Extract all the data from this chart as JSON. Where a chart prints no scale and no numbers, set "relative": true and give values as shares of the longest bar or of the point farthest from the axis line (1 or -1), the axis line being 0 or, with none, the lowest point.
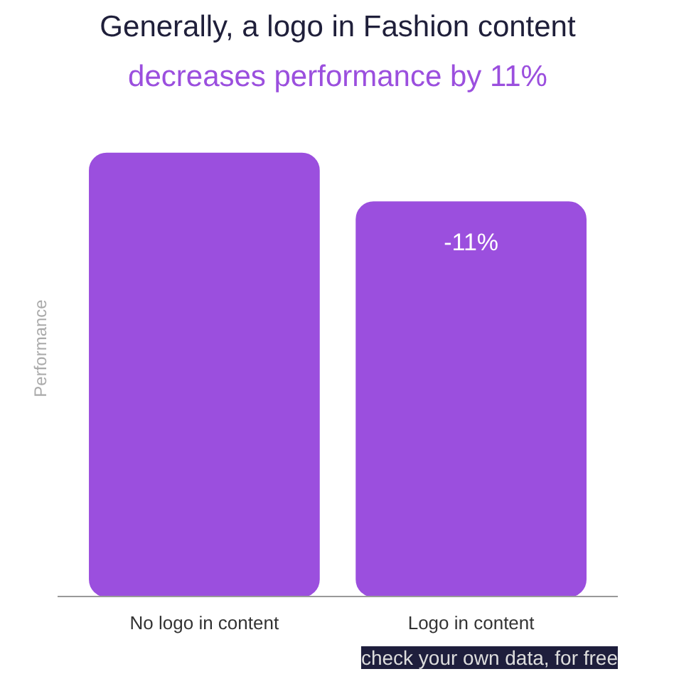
{
  "chart_data": {
    "type": "bar",
    "title": "Generally, a logo in Fashion content",
    "subtitle": "decreases performance by 11%",
    "ylabel": "Performance",
    "categories": [
      "No logo in content",
      "Logo in content"
    ],
    "values": [
      1,
      0.89
    ],
    "relative": true,
    "color": "#9b4fde",
    "annotations": [
      {
        "text": "-11%",
        "x": "Logo in content",
        "y": 0.89
      },
      "check your own data, for free"
    ]
  }
}
